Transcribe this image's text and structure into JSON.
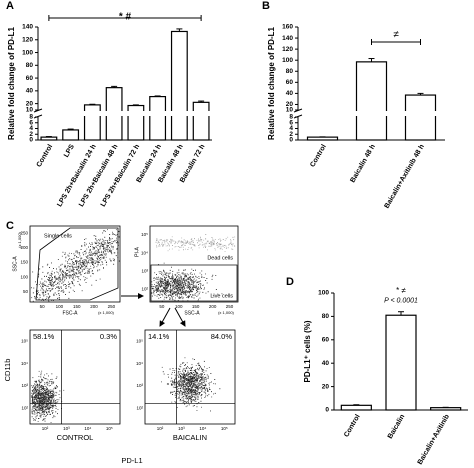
{
  "chart_data": [
    {
      "type": "bar",
      "panel": "A",
      "y_label": "Relative fold change of PD-L1",
      "categories": [
        "Control",
        "LPS",
        "LPS 2h+Baicalin 24 h",
        "LPS 2h+Baicalin 48 h",
        "LPS 2h+Baicalin 72 h",
        "Baicalin 24 h",
        "Baicalin 48 h",
        "Baicalin 72 h"
      ],
      "values": [
        1,
        3.5,
        18,
        45,
        17,
        31,
        133,
        22
      ],
      "errors": [
        0.2,
        0.3,
        1,
        2,
        1,
        1,
        4,
        2
      ],
      "color": "#ffffff",
      "lower_ylim": [
        0,
        8
      ],
      "upper_ylim": [
        10,
        140
      ],
      "yticks": [
        0,
        2,
        4,
        6,
        8,
        10,
        20,
        40,
        60,
        80,
        100,
        120,
        140
      ],
      "annotation": "* #"
    },
    {
      "type": "bar",
      "panel": "B",
      "y_label": "Relative fold change of PD-L1",
      "categories": [
        "Control",
        "Baicalin 48 h",
        "Baicalin+Axitinib 48 h"
      ],
      "values": [
        1,
        97,
        37
      ],
      "errors": [
        0.1,
        6,
        3
      ],
      "color": "#ffffff",
      "lower_ylim": [
        0,
        8
      ],
      "upper_ylim": [
        10,
        160
      ],
      "yticks": [
        0,
        2,
        4,
        6,
        8,
        10,
        20,
        40,
        60,
        80,
        100,
        120,
        140,
        160
      ],
      "annotation": "≠"
    },
    {
      "type": "bar",
      "panel": "D",
      "y_label": "PD-L1⁺ cells (%)",
      "categories": [
        "Control",
        "Baicalin",
        "Baicalin+Axitinib"
      ],
      "values": [
        4,
        81,
        2
      ],
      "errors": [
        0.5,
        3,
        0.3
      ],
      "color": "#ffffff",
      "ylim": [
        0,
        100
      ],
      "yticks": [
        0,
        20,
        40,
        60,
        80,
        100
      ],
      "annotations": [
        "* ≠",
        "P < 0.0001"
      ]
    }
  ],
  "flow_cytometry": {
    "panel": "C",
    "gating": [
      {
        "gate": "Single cells",
        "x_label": "FSC-A",
        "y_label": "SSC-A",
        "x_unit": "(x 1,000)",
        "y_unit": "(x 1,000)",
        "xticks": [
          50,
          100,
          150,
          200,
          250
        ],
        "yticks": [
          50,
          100,
          150,
          200,
          250
        ]
      },
      {
        "upper_gate": "Dead cells",
        "lower_gate": "Live cells",
        "x_label": "SSC-A",
        "y_label": "PI-A",
        "x_unit": "(x 1,000)",
        "xticks": [
          50,
          100,
          150,
          200,
          250
        ],
        "yticks": [
          "10²",
          "10³",
          "10⁴",
          "10⁵"
        ]
      }
    ],
    "quadrant_plots": [
      {
        "condition": "CONTROL",
        "upper_left": "58.1%",
        "upper_right": "0.3%",
        "xticks": [
          "10²",
          "10³",
          "10⁴",
          "10⁵"
        ],
        "yticks": [
          "10²",
          "10³",
          "10⁴",
          "10⁵"
        ]
      },
      {
        "condition": "BAICALIN",
        "upper_left": "14.1%",
        "upper_right": "84.0%",
        "xticks": [
          "10²",
          "10³",
          "10⁴",
          "10⁵"
        ],
        "yticks": [
          "10²",
          "10³",
          "10⁴",
          "10⁵"
        ]
      }
    ],
    "y_label": "CD11b",
    "x_label": "PD-L1"
  }
}
